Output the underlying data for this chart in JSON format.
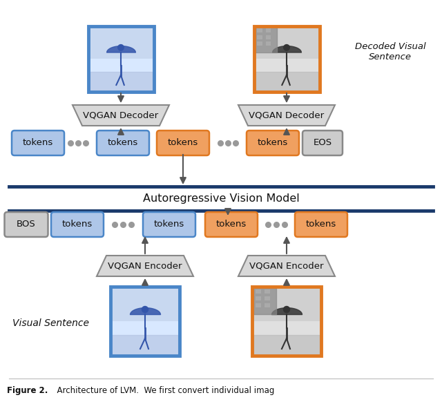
{
  "bg_color": "#ffffff",
  "blue_token_edge": "#4a86c8",
  "blue_token_face": "#aec6e8",
  "orange_token_edge": "#e07820",
  "orange_token_face": "#f0a060",
  "gray_token_edge": "#888888",
  "gray_token_face": "#cccccc",
  "enc_dec_edge": "#888888",
  "enc_dec_face": "#d8d8d8",
  "arrow_color": "#555555",
  "line_color": "#1a3a6b",
  "dot_color": "#999999",
  "text_color": "#111111",
  "avm_text": "Autoregressive Vision Model",
  "vs_label": "Visual Sentence",
  "dvs_label": "Decoded Visual\nSentence",
  "figsize": [
    6.4,
    5.82
  ],
  "dpi": 100
}
